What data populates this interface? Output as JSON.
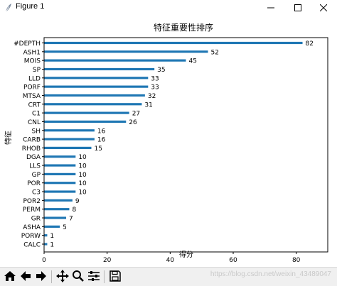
{
  "window": {
    "title": "Figure 1",
    "minimize_icon": "minimize-icon",
    "maximize_icon": "maximize-icon",
    "close_icon": "close-icon"
  },
  "toolbar": {
    "buttons": [
      "home-icon",
      "back-arrow-icon",
      "forward-arrow-icon",
      "pan-icon",
      "zoom-icon",
      "configure-subplots-icon",
      "save-icon"
    ]
  },
  "watermark": "https://blog.csdn.net/weixin_43489047",
  "chart_data": {
    "type": "bar",
    "orientation": "horizontal",
    "title": "特征重要性排序",
    "xlabel": "得分",
    "ylabel": "特征",
    "categories": [
      "#DEPTH",
      "ASH1",
      "MOIS",
      "SP",
      "LLD",
      "PORF",
      "MTSA",
      "CRT",
      "C1",
      "CNL",
      "SH",
      "CARB",
      "RHOB",
      "DGA",
      "LLS",
      "GP",
      "POR",
      "C3",
      "POR2",
      "PERM",
      "GR",
      "ASHA",
      "PORW",
      "CALC"
    ],
    "values": [
      82,
      52,
      45,
      35,
      33,
      33,
      32,
      31,
      27,
      26,
      16,
      16,
      15,
      10,
      10,
      10,
      10,
      10,
      9,
      8,
      7,
      5,
      1,
      1
    ],
    "xlim": [
      0,
      90
    ],
    "xticks": [
      0,
      20,
      40,
      60,
      80
    ],
    "bar_color": "#1f77b4",
    "grid": false,
    "value_labels": true
  }
}
